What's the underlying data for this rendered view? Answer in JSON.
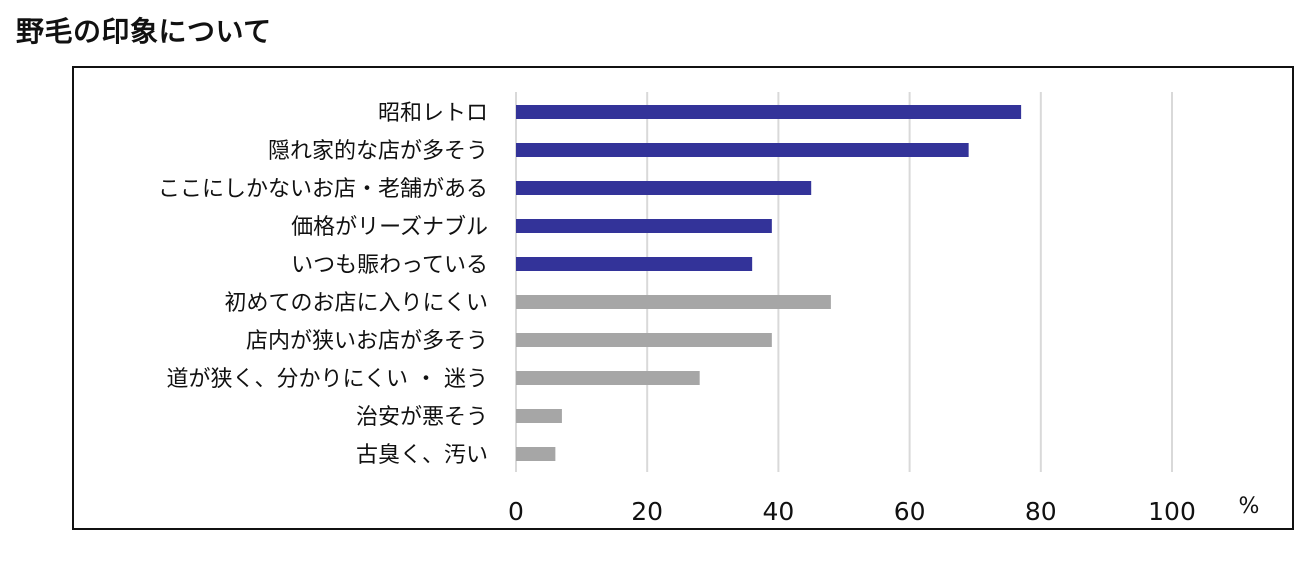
{
  "header": {
    "title": "野毛の印象について"
  },
  "chart_data": {
    "type": "bar",
    "orientation": "horizontal",
    "title": "野毛の印象について",
    "xlabel": "",
    "ylabel": "",
    "x_unit": "%",
    "xlim": [
      0,
      100
    ],
    "x_ticks": [
      0,
      20,
      40,
      60,
      80,
      100
    ],
    "grid": true,
    "legend": "none",
    "categories": [
      "昭和レトロ",
      "隠れ家的な店が多そう",
      "ここにしかないお店・老舗がある",
      "価格がリーズナブル",
      "いつも賑わっている",
      "初めてのお店に入りにくい",
      "店内が狭いお店が多そう",
      "道が狭く、分かりにくい ・ 迷う",
      "治安が悪そう",
      "古臭く、汚い"
    ],
    "values": [
      77,
      69,
      45,
      39,
      36,
      48,
      39,
      28,
      7,
      6
    ],
    "bar_colors": [
      "#333399",
      "#333399",
      "#333399",
      "#333399",
      "#333399",
      "#a6a6a6",
      "#a6a6a6",
      "#a6a6a6",
      "#a6a6a6",
      "#a6a6a6"
    ],
    "grid_color": "#d9d9d9"
  }
}
